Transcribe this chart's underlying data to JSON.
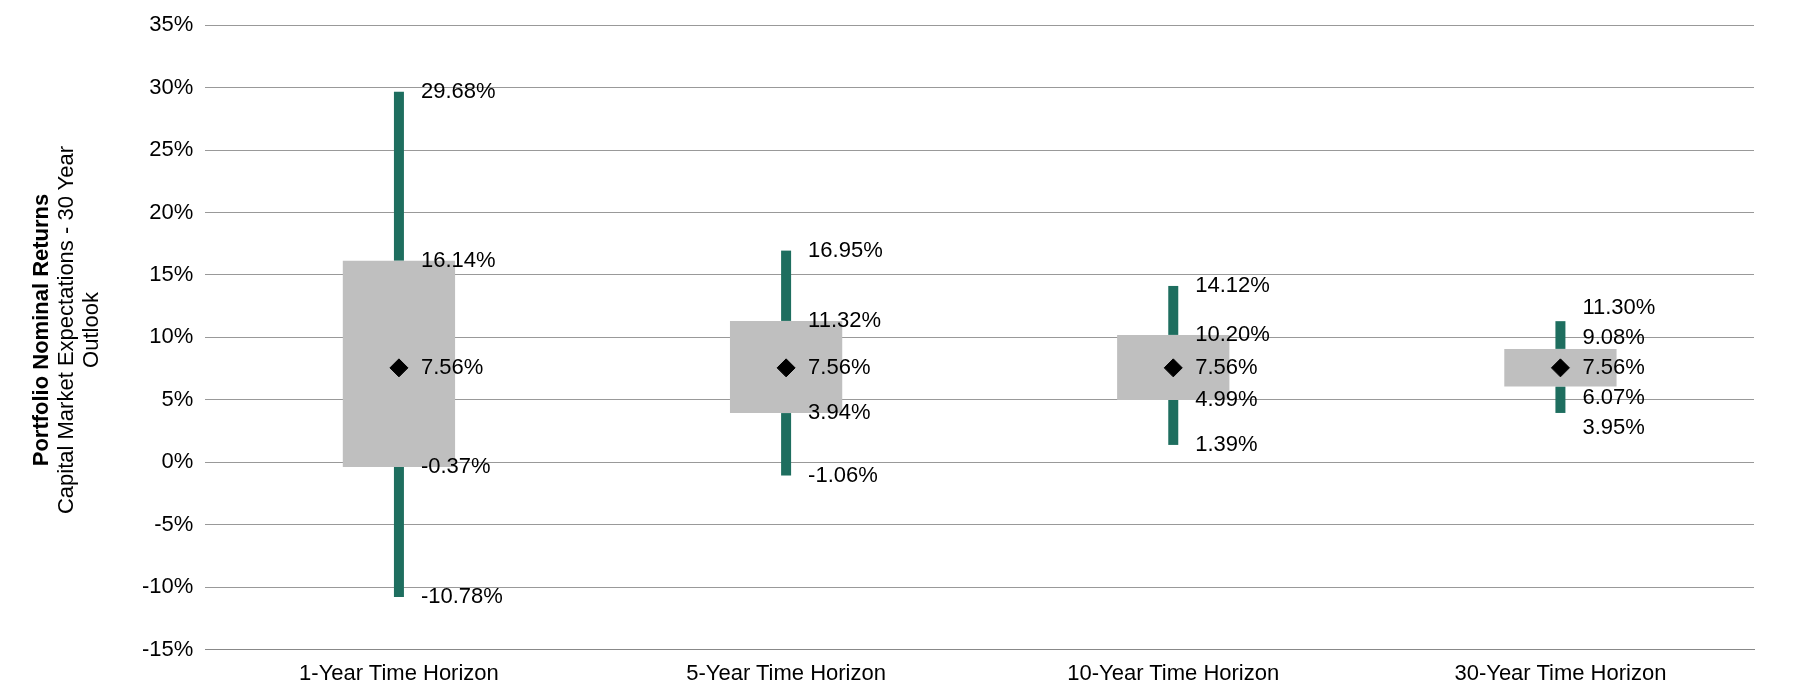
{
  "chart_data": {
    "type": "box",
    "ylabel": "Portfolio Nominal Returns",
    "subtitle": "Capital Market Expectations - 30 Year Outlook",
    "categories": [
      "1-Year Time Horizon",
      "5-Year Time Horizon",
      "10-Year Time Horizon",
      "30-Year Time Horizon"
    ],
    "series": [
      {
        "color": "#bfbfbf",
        "boxes": [
          {
            "low": -10.78,
            "q1": -0.37,
            "median": 7.56,
            "q3": 16.14,
            "high": 29.68
          },
          {
            "low": -1.06,
            "q1": 3.94,
            "median": 7.56,
            "q3": 11.32,
            "high": 16.95
          },
          {
            "low": 1.39,
            "q1": 4.99,
            "median": 7.56,
            "q3": 10.2,
            "high": 14.12
          },
          {
            "low": 3.95,
            "q1": 6.07,
            "median": 7.56,
            "q3": 9.08,
            "high": 11.3
          }
        ],
        "value_labels": [
          [
            "-10.78%",
            "-0.37%",
            "7.56%",
            "16.14%",
            "29.68%"
          ],
          [
            "-1.06%",
            "3.94%",
            "7.56%",
            "11.32%",
            "16.95%"
          ],
          [
            "1.39%",
            "4.99%",
            "7.56%",
            "10.20%",
            "14.12%"
          ],
          [
            "3.95%",
            "6.07%",
            "7.56%",
            "9.08%",
            "11.30%"
          ]
        ]
      }
    ],
    "ylim": [
      -15,
      35
    ],
    "yticks": [
      {
        "value": -15,
        "label": "-15%"
      },
      {
        "value": -10,
        "label": "-10%"
      },
      {
        "value": -5,
        "label": "-5%"
      },
      {
        "value": 0,
        "label": "0%"
      },
      {
        "value": 5,
        "label": "5%"
      },
      {
        "value": 10,
        "label": "10%"
      },
      {
        "value": 15,
        "label": "15%"
      },
      {
        "value": 20,
        "label": "20%"
      },
      {
        "value": 25,
        "label": "25%"
      },
      {
        "value": 30,
        "label": "30%"
      },
      {
        "value": 35,
        "label": "35%"
      }
    ],
    "grid": "y",
    "marker": "diamond",
    "legend": false
  }
}
